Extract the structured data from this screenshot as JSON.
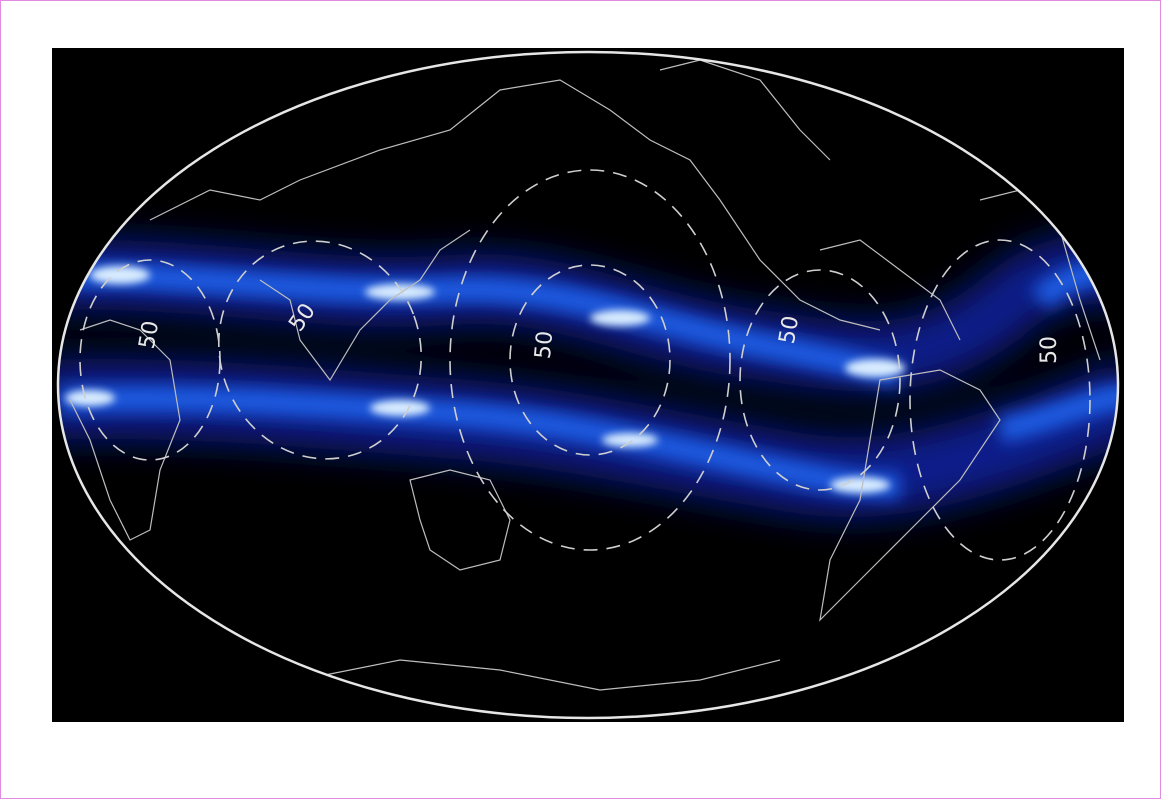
{
  "map": {
    "contour_labels": [
      "50",
      "50",
      "50",
      "50",
      "50"
    ]
  }
}
